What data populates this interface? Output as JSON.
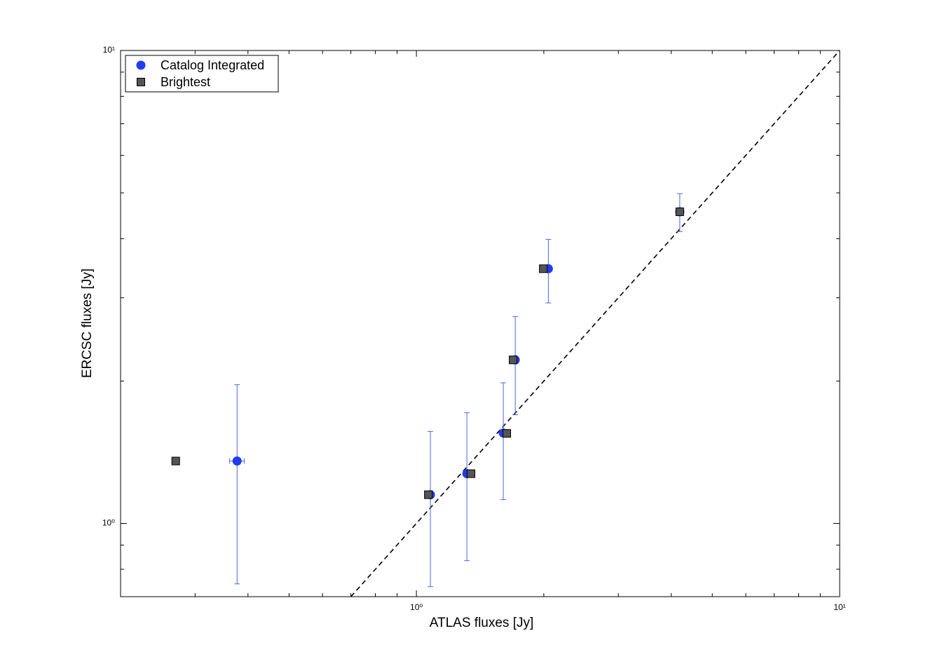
{
  "chart_data": {
    "type": "scatter",
    "xlabel": "ATLAS fluxes [Jy]",
    "ylabel": "ERCSC fluxes [Jy]",
    "xscale": "log",
    "yscale": "log",
    "xlim": [
      0.2,
      10
    ],
    "ylim": [
      0.7,
      10
    ],
    "xticks": [
      {
        "value": 1,
        "label": "10⁰"
      },
      {
        "value": 10,
        "label": "10¹"
      }
    ],
    "yticks": [
      {
        "value": 1,
        "label": "10⁰"
      },
      {
        "value": 10,
        "label": "10¹"
      }
    ],
    "xminorticks": [
      0.2,
      0.3,
      0.4,
      0.5,
      0.6,
      0.7,
      0.8,
      0.9,
      2,
      3,
      4,
      5,
      6,
      7,
      8,
      9
    ],
    "yminorticks": [
      0.7,
      0.8,
      0.9,
      2,
      3,
      4,
      5,
      6,
      7,
      8,
      9
    ],
    "legend": "upper left",
    "series": [
      {
        "name": "Catalog Integrated",
        "color": "#1f3cf5",
        "errcolor": "#4a68e0",
        "marker": "circle",
        "x": [
          0.377,
          1.079,
          1.316,
          1.604,
          1.712,
          2.05,
          4.19
        ],
        "values": [
          1.355,
          1.15,
          1.274,
          1.553,
          2.217,
          3.456,
          4.56
        ],
        "yerr": [
          0.61,
          0.415,
          0.44,
          0.43,
          0.52,
          0.53,
          0.42
        ],
        "xerr": [
          0.015,
          null,
          null,
          null,
          null,
          null,
          null
        ]
      },
      {
        "name": "Brightest",
        "color": "#555555",
        "marker": "square",
        "x": [
          0.27,
          1.067,
          1.346,
          1.635,
          1.692,
          1.994,
          4.19
        ],
        "values": [
          1.355,
          1.15,
          1.274,
          1.55,
          2.217,
          3.456,
          4.56
        ]
      }
    ]
  }
}
